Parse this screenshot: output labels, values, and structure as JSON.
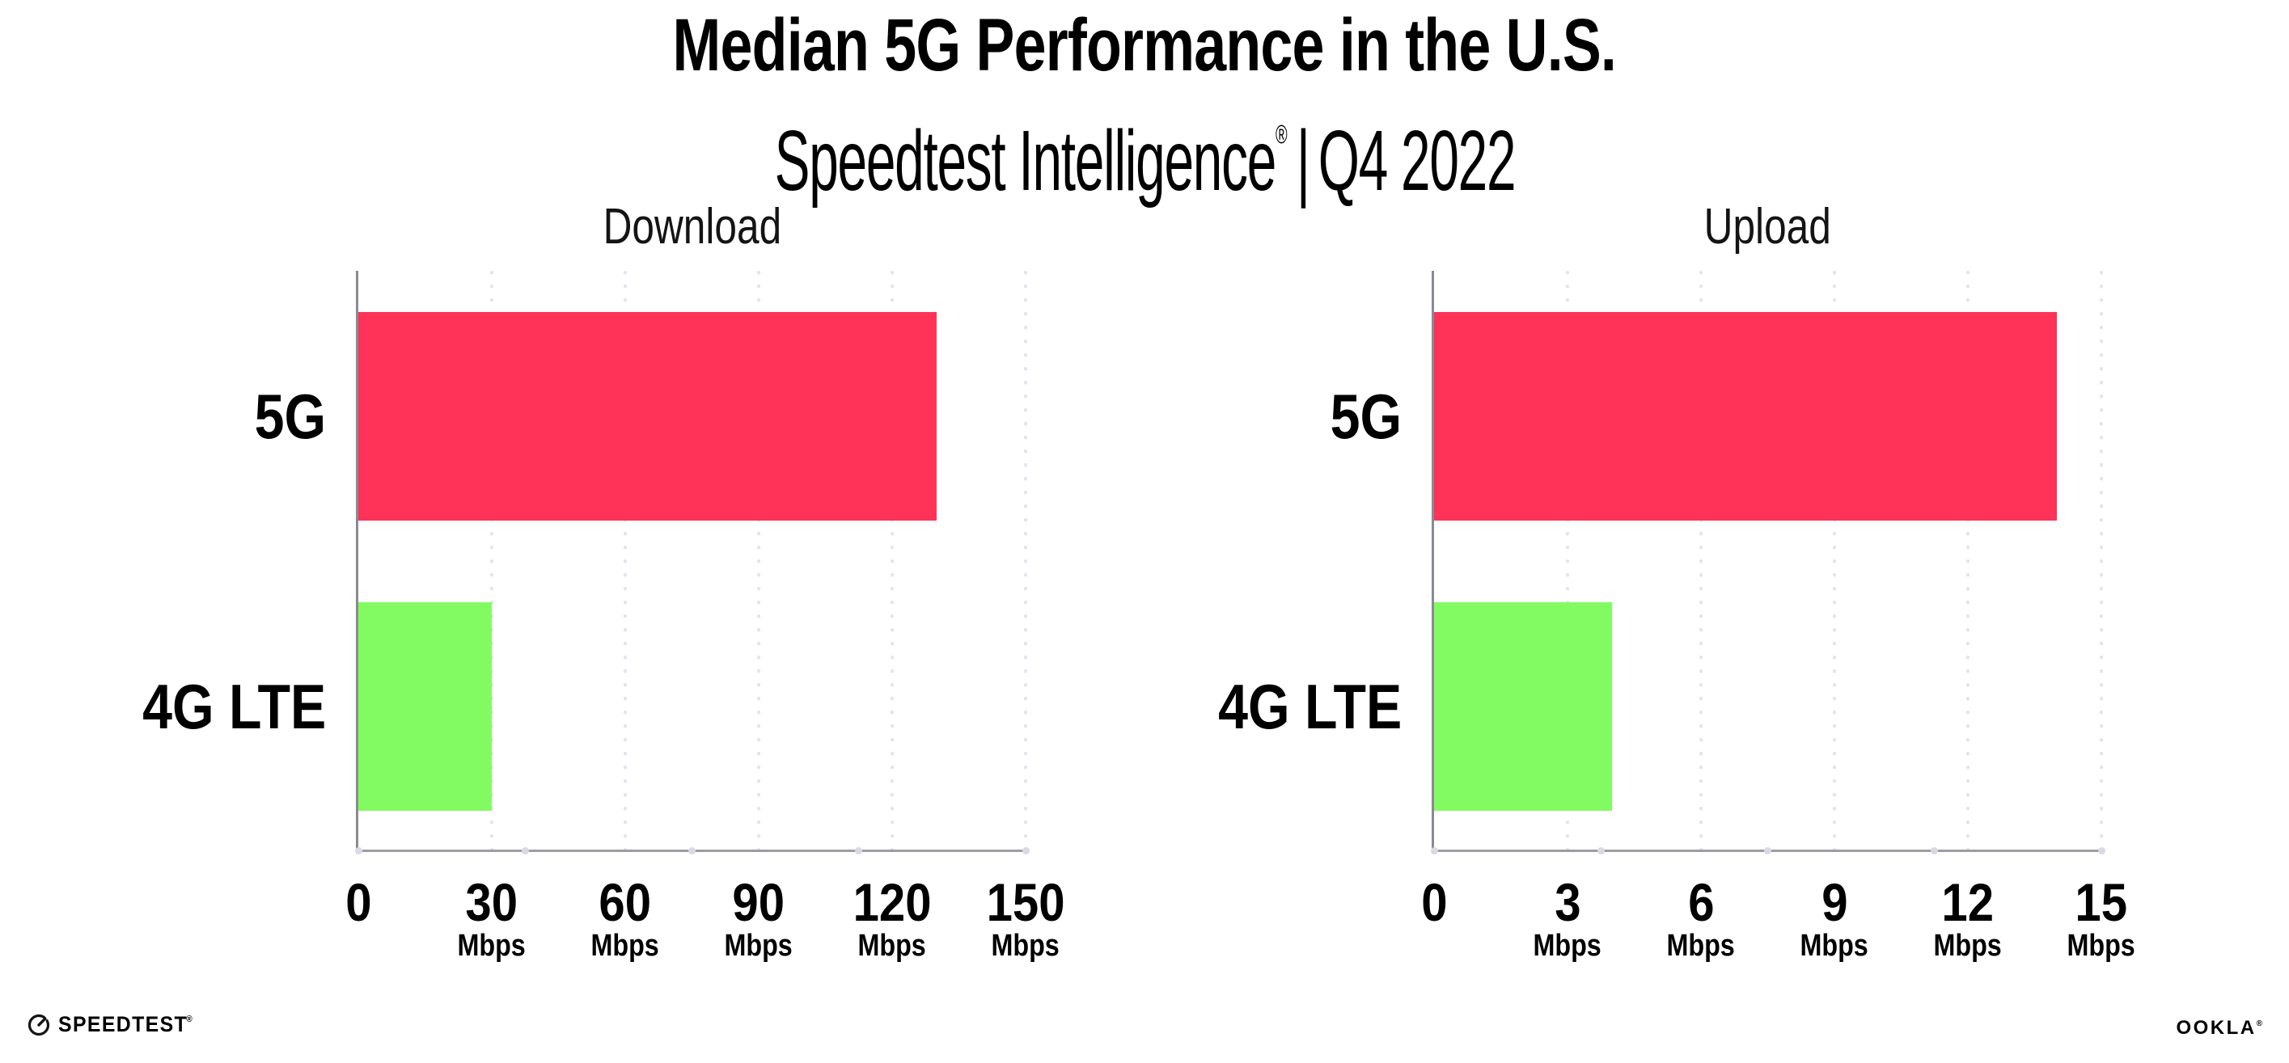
{
  "header": {
    "title": "Median 5G Performance in the U.S.",
    "subtitle_product": "Speedtest Intelligence",
    "subtitle_registered": "®",
    "subtitle_separator": "|",
    "subtitle_period": "Q4 2022"
  },
  "chart_data": [
    {
      "type": "bar",
      "orientation": "horizontal",
      "title": "Download",
      "categories": [
        "5G",
        "4G LTE"
      ],
      "values": [
        130,
        30
      ],
      "unit": "Mbps",
      "xlim": [
        0,
        150
      ],
      "xticks": [
        0,
        30,
        60,
        90,
        120,
        150
      ],
      "bar_colors": [
        "#FF3257",
        "#82FB62"
      ],
      "grid": "dotted-vertical-at-ticks",
      "legend": "none"
    },
    {
      "type": "bar",
      "orientation": "horizontal",
      "title": "Upload",
      "categories": [
        "5G",
        "4G LTE"
      ],
      "values": [
        14,
        4
      ],
      "unit": "Mbps",
      "xlim": [
        0,
        15
      ],
      "xticks": [
        0,
        3,
        6,
        9,
        12,
        15
      ],
      "bar_colors": [
        "#FF3257",
        "#82FB62"
      ],
      "grid": "dotted-vertical-at-ticks",
      "legend": "none"
    }
  ],
  "footer": {
    "speedtest_label": "SPEEDTEST",
    "speedtest_mark": "®",
    "ookla_label": "OOKLA",
    "ookla_mark": "®"
  },
  "colors": {
    "bar_5g": "#FF3257",
    "bar_4g_lte": "#82FB62",
    "gridline_dots": "#E4E4EF",
    "axis_line": "#9C9CA1",
    "axis_dots": "#D9D9E6",
    "text": "#000000"
  }
}
